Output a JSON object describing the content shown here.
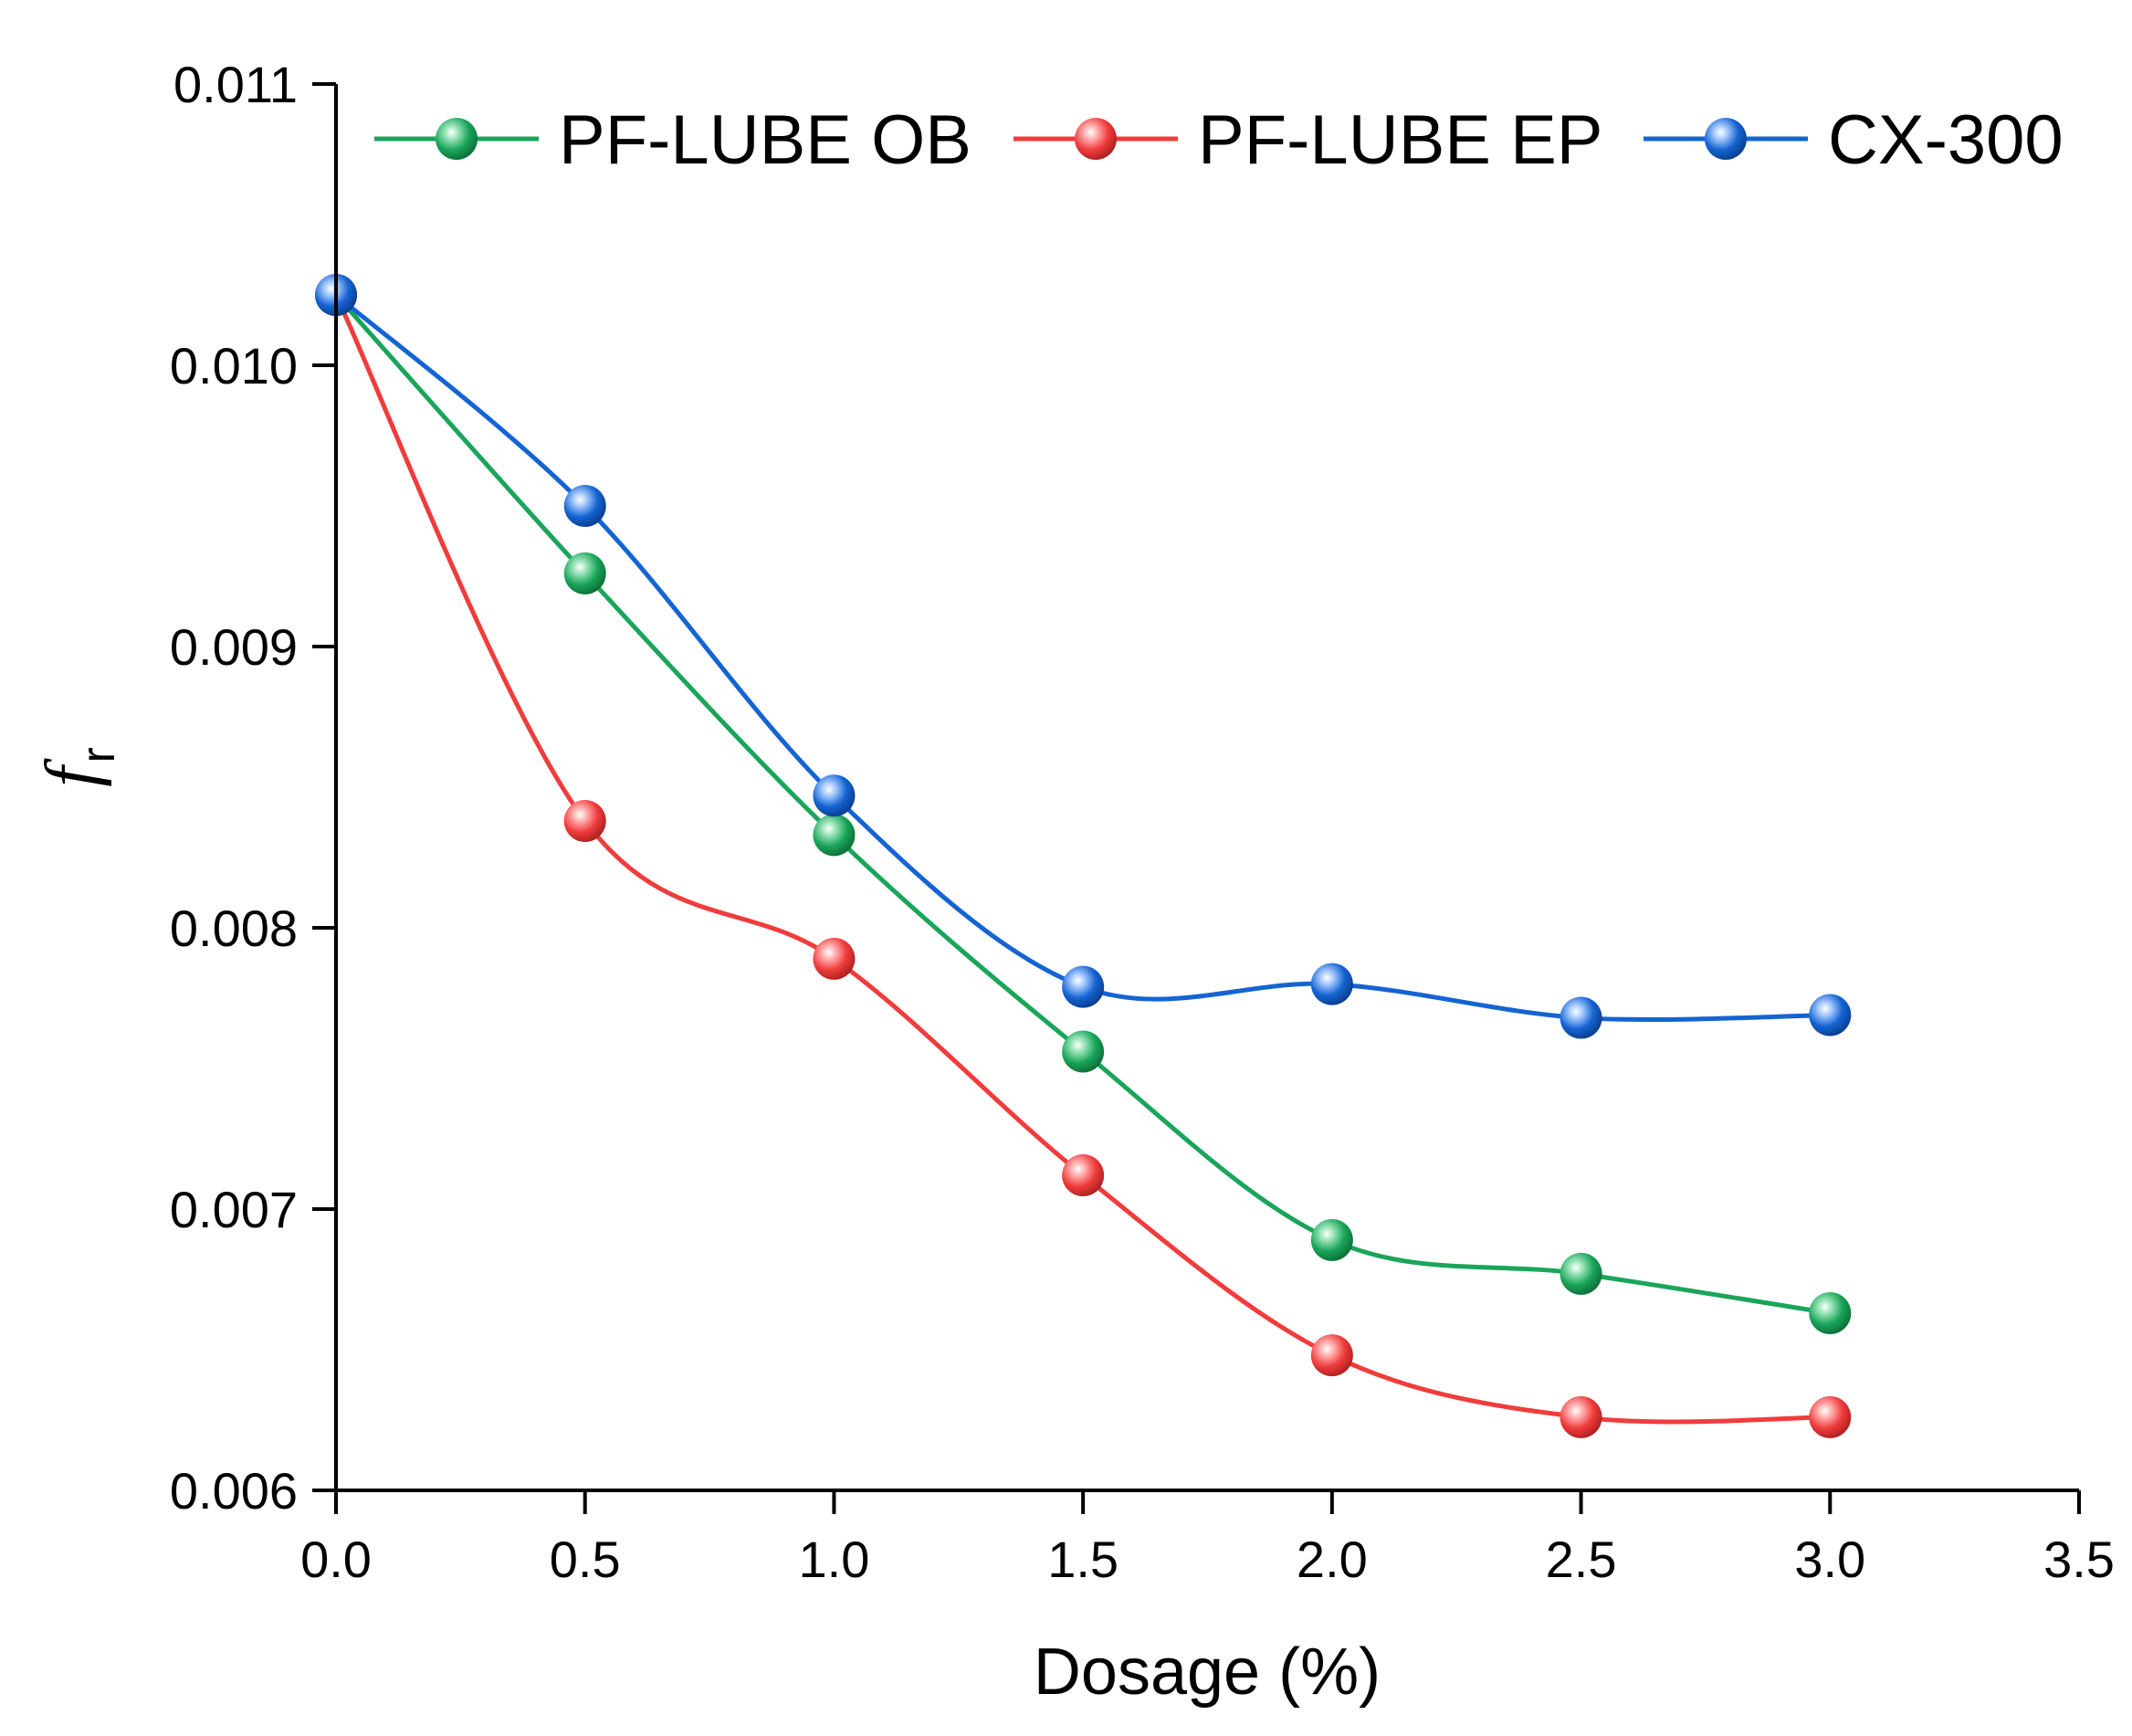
{
  "chart_data": {
    "type": "line",
    "title": "",
    "xlabel": "Dosage (%)",
    "ylabel": {
      "main": "f",
      "sub": "r"
    },
    "xlim": [
      0,
      3.5
    ],
    "ylim": [
      0.006,
      0.011
    ],
    "x_ticks": [
      "0.0",
      "0.5",
      "1.0",
      "1.5",
      "2.0",
      "2.5",
      "3.0",
      "3.5"
    ],
    "y_ticks": [
      "0.006",
      "0.007",
      "0.008",
      "0.009",
      "0.010",
      "0.011"
    ],
    "grid": false,
    "legend_position": "top",
    "x": [
      0,
      0.5,
      1.0,
      1.5,
      2.0,
      2.5,
      3.0
    ],
    "series": [
      {
        "name": "PF-LUBE OB",
        "color": "#1aa55a",
        "values": [
          0.01025,
          0.00926,
          0.00833,
          0.00756,
          0.00689,
          0.00677,
          0.00663
        ]
      },
      {
        "name": "PF-LUBE EP",
        "color": "#f03c3c",
        "values": [
          0.01025,
          0.00838,
          0.00789,
          0.00712,
          0.00648,
          0.00626,
          0.00626
        ]
      },
      {
        "name": "CX-300",
        "color": "#1464d2",
        "values": [
          0.01025,
          0.0095,
          0.00847,
          0.00779,
          0.0078,
          0.00768,
          0.00769
        ]
      }
    ]
  }
}
